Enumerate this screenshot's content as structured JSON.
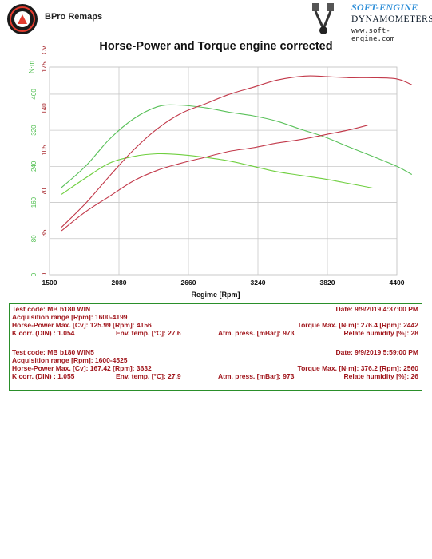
{
  "header": {
    "left_brand": "BPro Remaps",
    "right_brand_line1": "SOFT-ENGINE",
    "right_brand_line2": "DYNAMOMETERS",
    "right_brand_line3": "www.soft-engine.com"
  },
  "chart_data": {
    "type": "line",
    "title": "Horse-Power and Torque engine corrected",
    "xlabel": "Regime [Rpm]",
    "ylabel_left_outer": "N·m",
    "ylabel_left_inner": "Cv",
    "xlim": [
      1500,
      4400
    ],
    "x_ticks": [
      "1500",
      "2080",
      "2660",
      "3240",
      "3820",
      "4400"
    ],
    "y_torque_ticks": [
      "0",
      "80",
      "160",
      "240",
      "320",
      "400"
    ],
    "y_power_ticks": [
      "0",
      "35",
      "70",
      "105",
      "140",
      "175"
    ],
    "torque_ylim": [
      0,
      460
    ],
    "power_ylim": [
      0,
      175
    ],
    "grid": true,
    "colors": {
      "torque_axis": "#4fbf4f",
      "power_axis": "#a0151b",
      "torque_run1": "#6fcf3f",
      "torque_run2": "#5ac15a",
      "power_run1": "#c2394a",
      "power_run2": "#c2394a"
    },
    "series": [
      {
        "kind": "torque",
        "x": [
          1600,
          1800,
          2000,
          2200,
          2400,
          2600,
          2800,
          3000,
          3200,
          3400,
          3600,
          3800,
          4000,
          4199
        ],
        "y": [
          178,
          214,
          247,
          262,
          268,
          266,
          260,
          252,
          240,
          228,
          220,
          212,
          202,
          192
        ]
      },
      {
        "kind": "torque",
        "x": [
          1600,
          1800,
          2000,
          2200,
          2400,
          2560,
          2800,
          3000,
          3200,
          3400,
          3600,
          3800,
          4000,
          4200,
          4400,
          4525
        ],
        "y": [
          193,
          240,
          300,
          345,
          372,
          376,
          370,
          360,
          352,
          340,
          322,
          305,
          283,
          262,
          240,
          222
        ]
      },
      {
        "kind": "power",
        "x": [
          1600,
          1800,
          2000,
          2200,
          2400,
          2600,
          2800,
          3000,
          3200,
          3400,
          3600,
          3800,
          4000,
          4156
        ],
        "y": [
          37,
          53,
          66,
          79,
          88,
          94,
          99,
          104,
          107,
          111,
          114,
          118,
          122,
          125.99
        ]
      },
      {
        "kind": "power",
        "x": [
          1600,
          1800,
          2000,
          2200,
          2400,
          2600,
          2800,
          3000,
          3200,
          3400,
          3632,
          3800,
          4000,
          4200,
          4400,
          4525
        ],
        "y": [
          40,
          60,
          83,
          105,
          123,
          136,
          144,
          152,
          158,
          164,
          167.42,
          167,
          166,
          166,
          165,
          160
        ]
      }
    ]
  },
  "tests": [
    {
      "test_code": "Test code: MB b180 WIN",
      "date": "Date: 9/9/2019   4:37:00 PM",
      "acq_range": "Acquisition range [Rpm]: 1600-4199",
      "hp_max": "Horse-Power Max. [Cv]: 125.99   [Rpm]: 4156",
      "torque_max": "Torque Max. [N·m]: 276.4   [Rpm]: 2442",
      "k_corr": "K corr. (DIN) : 1.054",
      "env_temp": "Env. temp. [°C]: 27.6",
      "atm_press": "Atm. press. [mBar]: 973",
      "humidity": "Relate humidity [%]: 28"
    },
    {
      "test_code": "Test code: MB b180 WIN5",
      "date": "Date: 9/9/2019   5:59:00 PM",
      "acq_range": "Acquisition range [Rpm]: 1600-4525",
      "hp_max": "Horse-Power Max. [Cv]: 167.42   [Rpm]: 3632",
      "torque_max": "Torque Max. [N·m]: 376.2   [Rpm]: 2560",
      "k_corr": "K corr. (DIN) : 1.055",
      "env_temp": "Env. temp. [°C]: 27.9",
      "atm_press": "Atm. press. [mBar]: 973",
      "humidity": "Relate humidity [%]: 26"
    }
  ]
}
